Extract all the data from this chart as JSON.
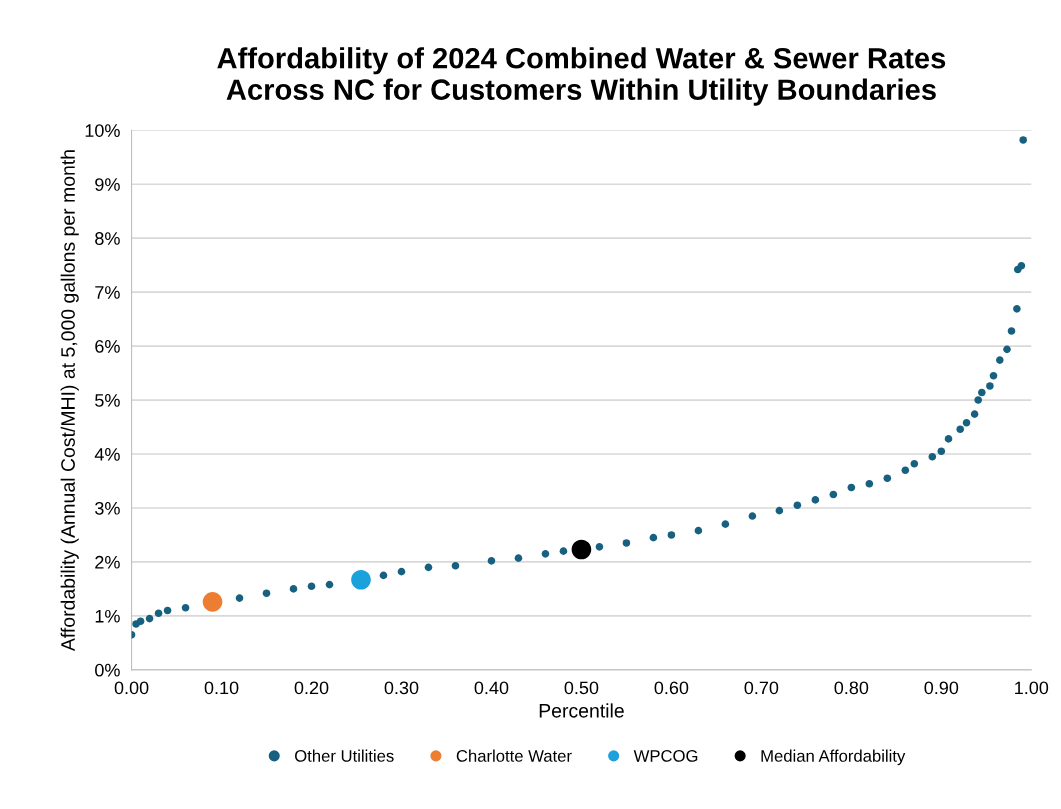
{
  "chart_data": {
    "type": "scatter",
    "title": "Affordability of 2024 Combined Water & Sewer Rates\nAcross NC for Customers Within Utility Boundaries",
    "xlabel": "Percentile",
    "ylabel": "Affordability (Annual Cost/MHI) at 5,000 gallons per month",
    "series": [
      {
        "name": "Other Utilities",
        "color": "#17607f",
        "x": [
          0.0,
          0.005,
          0.01,
          0.02,
          0.03,
          0.04,
          0.06,
          0.12,
          0.15,
          0.18,
          0.2,
          0.22,
          0.28,
          0.3,
          0.33,
          0.36,
          0.4,
          0.43,
          0.46,
          0.48,
          0.52,
          0.55,
          0.58,
          0.6,
          0.63,
          0.66,
          0.69,
          0.72,
          0.74,
          0.76,
          0.78,
          0.8,
          0.82,
          0.84,
          0.86,
          0.87,
          0.89,
          0.9,
          0.908,
          0.921,
          0.928,
          0.937,
          0.941,
          0.945,
          0.954,
          0.958,
          0.965,
          0.973,
          0.978,
          0.984,
          0.985,
          0.989,
          0.991
        ],
        "values": [
          0.65,
          0.85,
          0.9,
          0.95,
          1.05,
          1.1,
          1.15,
          1.33,
          1.42,
          1.5,
          1.55,
          1.58,
          1.75,
          1.82,
          1.9,
          1.93,
          2.02,
          2.07,
          2.15,
          2.2,
          2.28,
          2.35,
          2.45,
          2.5,
          2.58,
          2.7,
          2.85,
          2.95,
          3.05,
          3.15,
          3.25,
          3.38,
          3.45,
          3.55,
          3.7,
          3.82,
          3.95,
          4.05,
          4.28,
          4.46,
          4.58,
          4.74,
          5.0,
          5.14,
          5.26,
          5.45,
          5.74,
          5.94,
          6.28,
          6.69,
          7.42,
          7.49,
          9.82
        ]
      },
      {
        "name": "Charlotte Water",
        "color": "#ed7d31",
        "x": [
          0.09
        ],
        "values": [
          1.26
        ]
      },
      {
        "name": "WPCOG",
        "color": "#1ba1dc",
        "x": [
          0.255
        ],
        "values": [
          1.67
        ]
      },
      {
        "name": "Median Affordability",
        "color": "#000000",
        "x": [
          0.5
        ],
        "values": [
          2.23
        ]
      }
    ],
    "xlim": [
      0,
      1
    ],
    "xticks": [
      {
        "value": 0,
        "label": "0.00"
      },
      {
        "value": 0.1,
        "label": "0.10"
      },
      {
        "value": 0.2,
        "label": "0.20"
      },
      {
        "value": 0.3,
        "label": "0.30"
      },
      {
        "value": 0.4,
        "label": "0.40"
      },
      {
        "value": 0.5,
        "label": "0.50"
      },
      {
        "value": 0.6,
        "label": "0.60"
      },
      {
        "value": 0.7,
        "label": "0.70"
      },
      {
        "value": 0.8,
        "label": "0.80"
      },
      {
        "value": 0.9,
        "label": "0.90"
      },
      {
        "value": 1,
        "label": "1.00"
      }
    ],
    "ylim": [
      0,
      10
    ],
    "yticks": [
      {
        "value": 0,
        "label": "0%"
      },
      {
        "value": 1,
        "label": "1%"
      },
      {
        "value": 2,
        "label": "2%"
      },
      {
        "value": 3,
        "label": "3%"
      },
      {
        "value": 4,
        "label": "4%"
      },
      {
        "value": 5,
        "label": "5%"
      },
      {
        "value": 6,
        "label": "6%"
      },
      {
        "value": 7,
        "label": "7%"
      },
      {
        "value": 8,
        "label": "8%"
      },
      {
        "value": 9,
        "label": "9%"
      },
      {
        "value": 10,
        "label": "10%"
      }
    ],
    "grid": "y",
    "legend": "bottom",
    "marker": "circle"
  }
}
